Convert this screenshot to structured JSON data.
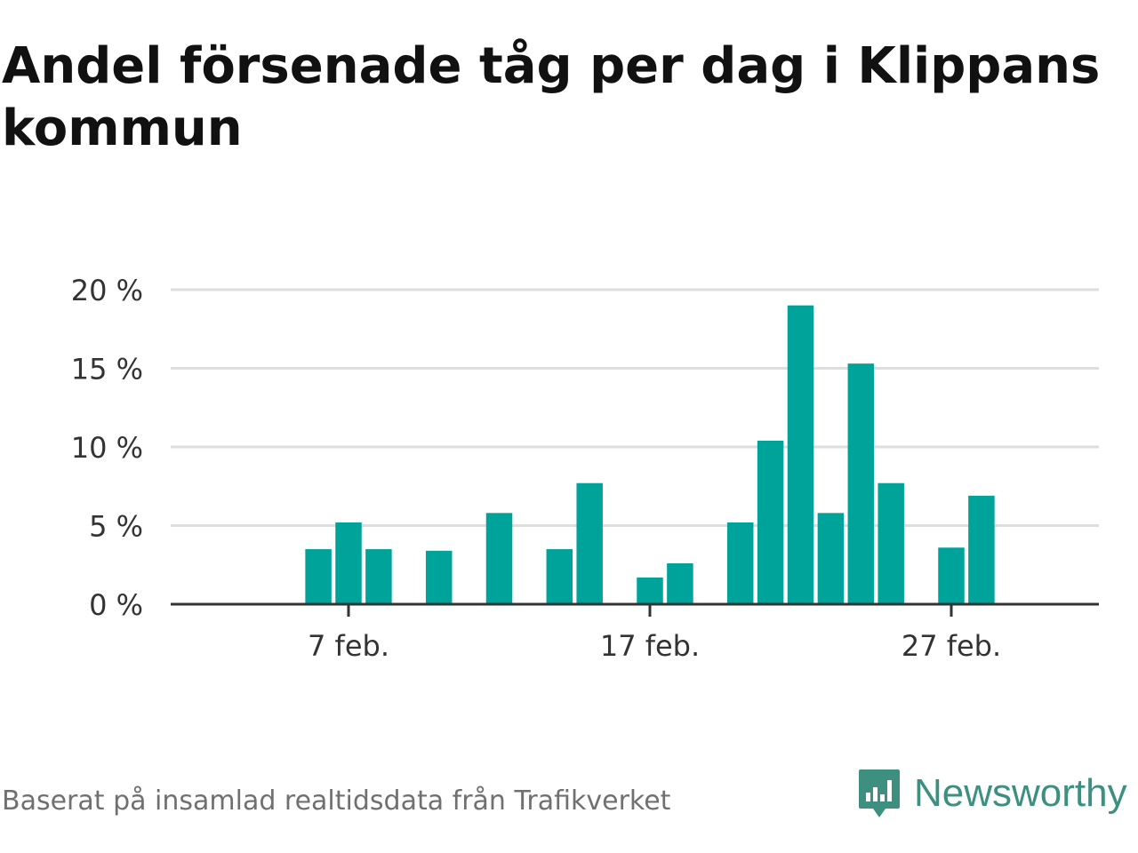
{
  "title": "Andel försenade tåg per dag i Klippans kommun",
  "source": "Baserat på insamlad realtidsdata från Trafikverket",
  "brand": {
    "name": "Newsworthy",
    "icon": "newsworthy-logo-icon",
    "color": "#3d8f80"
  },
  "chart_data": {
    "type": "bar",
    "x": [
      "2 feb.",
      "3 feb.",
      "4 feb.",
      "5 feb.",
      "6 feb.",
      "7 feb.",
      "8 feb.",
      "9 feb.",
      "10 feb.",
      "11 feb.",
      "12 feb.",
      "13 feb.",
      "14 feb.",
      "15 feb.",
      "16 feb.",
      "17 feb.",
      "18 feb.",
      "19 feb.",
      "20 feb.",
      "21 feb.",
      "22 feb.",
      "23 feb.",
      "24 feb.",
      "25 feb.",
      "26 feb.",
      "27 feb.",
      "28 feb."
    ],
    "values": [
      null,
      null,
      null,
      null,
      3.5,
      5.2,
      3.5,
      null,
      3.4,
      null,
      5.8,
      null,
      3.5,
      7.7,
      null,
      1.7,
      2.6,
      null,
      5.2,
      10.4,
      19.0,
      5.8,
      15.3,
      7.7,
      null,
      3.6,
      6.9
    ],
    "xticks": [
      "7 feb.",
      "17 feb.",
      "27 feb."
    ],
    "yticks": [
      "0 %",
      "5 %",
      "10 %",
      "15 %",
      "20 %"
    ],
    "ylim": [
      0,
      20
    ],
    "unit": "%",
    "bar_color": "#00a39a",
    "grid": true
  }
}
